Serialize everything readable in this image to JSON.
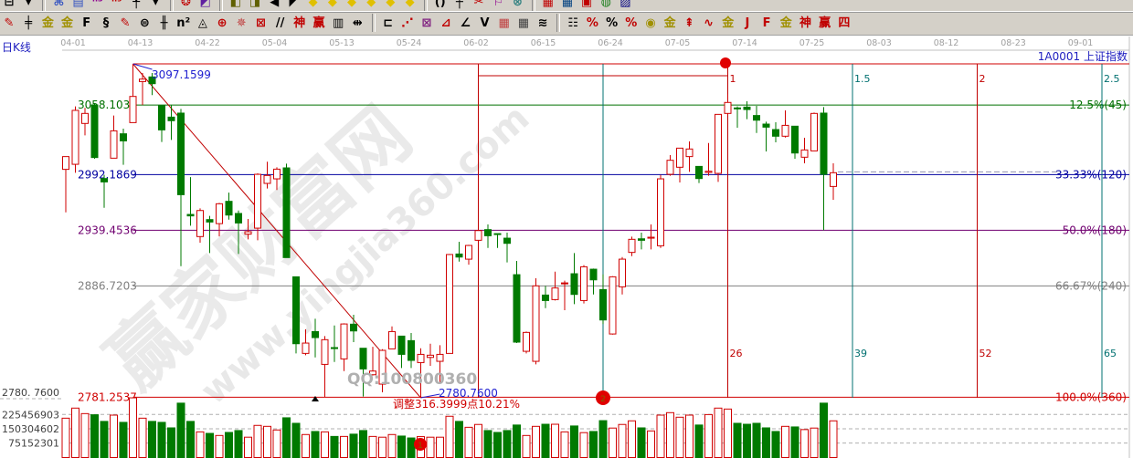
{
  "toolbar": {
    "row1": [
      {
        "name": "window-layout-icon",
        "glyph": "⊟",
        "color": "#000"
      },
      {
        "name": "dropdown-arrow-icon",
        "glyph": "▾",
        "color": "#000"
      },
      {
        "name": "sep"
      },
      {
        "name": "pattern-icon",
        "glyph": "⌘",
        "color": "#3050c0"
      },
      {
        "name": "list-icon",
        "glyph": "▤",
        "color": "#3050c0"
      },
      {
        "name": "indicator-3-icon",
        "glyph": "ⁿ³",
        "color": "#900090"
      },
      {
        "name": "indicator-9-icon",
        "glyph": "ⁿ⁹",
        "color": "#c00000"
      },
      {
        "name": "candle-type-icon",
        "glyph": "╀",
        "color": "#000"
      },
      {
        "name": "dropdown-arrow-icon",
        "glyph": "▾",
        "color": "#000"
      },
      {
        "name": "sep"
      },
      {
        "name": "cycle-icon",
        "glyph": "❂",
        "color": "#c00000"
      },
      {
        "name": "color-chart-icon",
        "glyph": "◩",
        "color": "#6020a0"
      },
      {
        "name": "sep"
      },
      {
        "name": "first-page-icon",
        "glyph": "◧",
        "color": "#606000"
      },
      {
        "name": "prev-page-icon",
        "glyph": "◨",
        "color": "#606000"
      },
      {
        "name": "back-icon",
        "glyph": "◀",
        "color": "#000"
      },
      {
        "name": "forward-icon",
        "glyph": "◤",
        "color": "#000"
      },
      {
        "name": "diamond-1-icon",
        "glyph": "◆",
        "color": "#e0c000"
      },
      {
        "name": "diamond-2-icon",
        "glyph": "◆",
        "color": "#e0c000"
      },
      {
        "name": "diamond-3-icon",
        "glyph": "◆",
        "color": "#e0c000"
      },
      {
        "name": "diamond-4-icon",
        "glyph": "◆",
        "color": "#e0c000"
      },
      {
        "name": "diamond-5-icon",
        "glyph": "◆",
        "color": "#e0c000"
      },
      {
        "name": "diamond-6-icon",
        "glyph": "◆",
        "color": "#e0c000"
      },
      {
        "name": "sep"
      },
      {
        "name": "parentheses-icon",
        "glyph": "()",
        "color": "#000"
      },
      {
        "name": "crosshair-icon",
        "glyph": "┼",
        "color": "#000"
      },
      {
        "name": "scissors-icon",
        "glyph": "✂",
        "color": "#c00000"
      },
      {
        "name": "flag-icon",
        "glyph": "⚐",
        "color": "#900090"
      },
      {
        "name": "link-icon",
        "glyph": "⊗",
        "color": "#308080"
      },
      {
        "name": "sep"
      },
      {
        "name": "calendar-icon",
        "glyph": "▦",
        "color": "#c00000"
      },
      {
        "name": "grid-icon",
        "glyph": "▦",
        "color": "#004080"
      },
      {
        "name": "save-icon",
        "glyph": "▣",
        "color": "#c00000"
      },
      {
        "name": "globe-icon",
        "glyph": "◍",
        "color": "#208020"
      },
      {
        "name": "print-icon",
        "glyph": "▨",
        "color": "#000080"
      }
    ],
    "row2": [
      {
        "name": "pencil-icon",
        "glyph": "✎",
        "color": "#c00000"
      },
      {
        "name": "hash-lines-icon",
        "glyph": "╪",
        "color": "#000"
      },
      {
        "name": "gold-lines-icon",
        "glyph": "金",
        "color": "#a09000"
      },
      {
        "name": "gold-lines-2-icon",
        "glyph": "金",
        "color": "#a09000"
      },
      {
        "name": "f-lines-icon",
        "glyph": "F",
        "color": "#000"
      },
      {
        "name": "spiral-icon",
        "glyph": "§",
        "color": "#000"
      },
      {
        "name": "pencil-lines-icon",
        "glyph": "✎",
        "color": "#c00000"
      },
      {
        "name": "circle-scale-icon",
        "glyph": "⊜",
        "color": "#000"
      },
      {
        "name": "grid-lines-icon",
        "glyph": "╫",
        "color": "#000"
      },
      {
        "name": "n-squared-icon",
        "glyph": "n²",
        "color": "#000"
      },
      {
        "name": "triangle-lines-icon",
        "glyph": "◬",
        "color": "#000"
      },
      {
        "name": "target-icon",
        "glyph": "⊕",
        "color": "#c00000"
      },
      {
        "name": "compass-icon",
        "glyph": "✵",
        "color": "#c04040"
      },
      {
        "name": "square-web-icon",
        "glyph": "⊠",
        "color": "#c00000"
      },
      {
        "name": "parallel-icon",
        "glyph": "//",
        "color": "#000"
      },
      {
        "name": "shen-icon",
        "glyph": "神",
        "color": "#c00000"
      },
      {
        "name": "ying-icon",
        "glyph": "赢",
        "color": "#c00000"
      },
      {
        "name": "ruler-123-icon",
        "glyph": "▥",
        "color": "#000"
      },
      {
        "name": "width-icon",
        "glyph": "⇹",
        "color": "#000"
      },
      {
        "name": "sep"
      },
      {
        "name": "box-icon",
        "glyph": "⊏",
        "color": "#000"
      },
      {
        "name": "fan-icon",
        "glyph": "⋰",
        "color": "#c00000"
      },
      {
        "name": "gann-box-icon",
        "glyph": "⊠",
        "color": "#802080"
      },
      {
        "name": "gann-fan-icon",
        "glyph": "⊿",
        "color": "#c00000"
      },
      {
        "name": "angle-icon",
        "glyph": "∠",
        "color": "#000"
      },
      {
        "name": "v-lines-icon",
        "glyph": "V",
        "color": "#000"
      },
      {
        "name": "gann-grid-icon",
        "glyph": "▦",
        "color": "#c04040"
      },
      {
        "name": "grid-2-icon",
        "glyph": "▦",
        "color": "#404040"
      },
      {
        "name": "diagonal-lines-icon",
        "glyph": "≋",
        "color": "#000"
      },
      {
        "name": "sep"
      },
      {
        "name": "table-icon",
        "glyph": "☷",
        "color": "#000"
      },
      {
        "name": "percent-slash-icon",
        "glyph": "%",
        "color": "#c00000"
      },
      {
        "name": "percent-icon",
        "glyph": "%",
        "color": "#000"
      },
      {
        "name": "percent-lines-icon",
        "glyph": "%",
        "color": "#c00000"
      },
      {
        "name": "gold-coin-icon",
        "glyph": "◉",
        "color": "#a09000"
      },
      {
        "name": "gold-bars-icon",
        "glyph": "金",
        "color": "#a09000"
      },
      {
        "name": "rocket-icon",
        "glyph": "⇞",
        "color": "#c00000"
      },
      {
        "name": "wave-icon",
        "glyph": "∿",
        "color": "#c00000"
      },
      {
        "name": "gold-box-icon",
        "glyph": "金",
        "color": "#a09000"
      },
      {
        "name": "j-angle-icon",
        "glyph": "J",
        "color": "#c00000"
      },
      {
        "name": "f-angle-icon",
        "glyph": "F",
        "color": "#c00000"
      },
      {
        "name": "gold-angle-icon",
        "glyph": "金",
        "color": "#a09000"
      },
      {
        "name": "shen-angle-icon",
        "glyph": "神",
        "color": "#c00000"
      },
      {
        "name": "ying-angle-icon",
        "glyph": "赢",
        "color": "#c00000"
      },
      {
        "name": "four-angle-icon",
        "glyph": "四",
        "color": "#c00000"
      }
    ]
  },
  "header": {
    "period_label": "日K线",
    "symbol_label": "1A0001  上证指数"
  },
  "x_axis": {
    "tick_every_bars": 7,
    "date_labels": [
      "04-01",
      "04-13",
      "04-22",
      "05-04",
      "05-13",
      "05-24",
      "06-02",
      "06-15",
      "06-24",
      "07-05",
      "07-14",
      "07-25",
      "08-03",
      "08-12",
      "08-23",
      "09-01"
    ]
  },
  "price_axis_label": "2780. 7600",
  "volume_axis": {
    "labels": [
      "225456903",
      "150304602",
      "75152301"
    ],
    "values": [
      225456903,
      150304602,
      75152301
    ]
  },
  "colors": {
    "up": "#d00000",
    "down": "#007a00",
    "level_12_5": "#007000",
    "level_33": "#0000a0",
    "level_50": "#700070",
    "level_66": "#808080",
    "level_100": "#d00000",
    "cycle_red": "#c00000",
    "cycle_teal": "#007070",
    "annotation_blue": "#2020d0"
  },
  "chart_data": {
    "type": "candlestick",
    "price_range": [
      2780.76,
      3097.16
    ],
    "fields": [
      "open",
      "high",
      "low",
      "close",
      "volume"
    ],
    "candles": [
      [
        2997.2,
        3009.3,
        2956.5,
        3009.3,
        206000000.0
      ],
      [
        3002.0,
        3056.8,
        2994.0,
        3053.1,
        259000000.0
      ],
      [
        3040.7,
        3055.4,
        3029.4,
        3050.2,
        230000000.0
      ],
      [
        3058.2,
        3059.7,
        3007.2,
        3008.4,
        224000000.0
      ],
      [
        2988.5,
        2992.0,
        2960.8,
        2985.3,
        189000000.0
      ],
      [
        3007.8,
        3048.2,
        3007.8,
        3033.7,
        222000000.0
      ],
      [
        3030.9,
        3035.8,
        3001.5,
        3024.2,
        184000000.0
      ],
      [
        3041.5,
        3097.16,
        3041.5,
        3066.3,
        313000000.0
      ],
      [
        3080.4,
        3088.5,
        3058.2,
        3082.7,
        206000000.0
      ],
      [
        3084.8,
        3088.5,
        3067.5,
        3078.4,
        189000000.0
      ],
      [
        3057.7,
        3058.2,
        3023.1,
        3034.6,
        184000000.0
      ],
      [
        3046.7,
        3058.2,
        3025.1,
        3043.3,
        155000000.0
      ],
      [
        3050.5,
        3054.5,
        2905.5,
        2973.2,
        285000000.0
      ],
      [
        2954.5,
        2989.9,
        2943.8,
        2953.1,
        189000000.0
      ],
      [
        2933.5,
        2960.3,
        2927.7,
        2958.2,
        134000000.0
      ],
      [
        2949.6,
        2953.1,
        2917.9,
        2947.3,
        126000000.0
      ],
      [
        2945.8,
        2965.4,
        2933.7,
        2964.6,
        115000000.0
      ],
      [
        2966.9,
        2975.2,
        2949.6,
        2953.9,
        131000000.0
      ],
      [
        2955.4,
        2958.2,
        2917.0,
        2946.4,
        141000000.0
      ],
      [
        2935.8,
        2950.2,
        2930.9,
        2938.1,
        106000000.0
      ],
      [
        2941.5,
        2993.4,
        2930.0,
        2992.5,
        168000000.0
      ],
      [
        2983.9,
        3004.4,
        2979.0,
        2991.4,
        163000000.0
      ],
      [
        2988.2,
        2999.2,
        2977.6,
        2997.4,
        144000000.0
      ],
      [
        2998.6,
        3002.6,
        2913.6,
        2913.6,
        208000000.0
      ],
      [
        2895.4,
        2895.4,
        2822.8,
        2832.0,
        179000000.0
      ],
      [
        2822.8,
        2845.6,
        2821.1,
        2832.6,
        120000000.0
      ],
      [
        2843.5,
        2855.6,
        2819.0,
        2837.8,
        136000000.0
      ],
      [
        2812.4,
        2839.2,
        2781.25,
        2835.8,
        134000000.0
      ],
      [
        2828.3,
        2849.3,
        2814.7,
        2827.4,
        110000000.0
      ],
      [
        2817.6,
        2851.3,
        2806.1,
        2850.7,
        110000000.0
      ],
      [
        2850.5,
        2859.4,
        2833.5,
        2844.1,
        122000000.0
      ],
      [
        2827.7,
        2827.7,
        2782.0,
        2808.1,
        141000000.0
      ],
      [
        2802.6,
        2829.1,
        2801.8,
        2806.1,
        110000000.0
      ],
      [
        2793.7,
        2826.8,
        2785.9,
        2825.7,
        106000000.0
      ],
      [
        2827.1,
        2848.4,
        2827.1,
        2843.5,
        120000000.0
      ],
      [
        2839.2,
        2839.2,
        2809.0,
        2821.9,
        112000000.0
      ],
      [
        2834.9,
        2842.1,
        2809.0,
        2816.2,
        102000000.0
      ],
      [
        2814.1,
        2827.7,
        2780.76,
        2821.9,
        109000000.0
      ],
      [
        2819.0,
        2832.0,
        2811.0,
        2821.1,
        106000000.0
      ],
      [
        2815.3,
        2830.6,
        2794.5,
        2821.9,
        106000000.0
      ],
      [
        2822.8,
        2917.0,
        2822.8,
        2916.5,
        216000000.0
      ],
      [
        2917.0,
        2928.6,
        2909.8,
        2914.1,
        189000000.0
      ],
      [
        2912.1,
        2925.7,
        2906.9,
        2925.1,
        158000000.0
      ],
      [
        2930.0,
        2940.1,
        2930.0,
        2939.2,
        173000000.0
      ],
      [
        2940.1,
        2945.0,
        2922.8,
        2934.3,
        141000000.0
      ],
      [
        2936.3,
        2936.3,
        2922.8,
        2935.8,
        131000000.0
      ],
      [
        2932.0,
        2937.2,
        2909.0,
        2927.1,
        141000000.0
      ],
      [
        2897.4,
        2910.4,
        2832.6,
        2833.5,
        170000000.0
      ],
      [
        2824.8,
        2843.5,
        2822.8,
        2842.7,
        115000000.0
      ],
      [
        2815.3,
        2894.0,
        2812.4,
        2886.8,
        163000000.0
      ],
      [
        2878.1,
        2886.8,
        2865.7,
        2872.9,
        174000000.0
      ],
      [
        2873.8,
        2900.3,
        2872.9,
        2884.8,
        174000000.0
      ],
      [
        2889.1,
        2891.7,
        2863.7,
        2889.6,
        134000000.0
      ],
      [
        2898.3,
        2917.9,
        2869.5,
        2878.7,
        165000000.0
      ],
      [
        2872.9,
        2906.4,
        2870.1,
        2904.9,
        130000000.0
      ],
      [
        2902.6,
        2903.2,
        2878.7,
        2892.5,
        136000000.0
      ],
      [
        2883.3,
        2897.7,
        2850.7,
        2854.5,
        193000000.0
      ],
      [
        2841.2,
        2896.0,
        2840.6,
        2895.4,
        154000000.0
      ],
      [
        2885.9,
        2914.1,
        2878.7,
        2912.1,
        173000000.0
      ],
      [
        2918.5,
        2933.5,
        2915.0,
        2930.9,
        192000000.0
      ],
      [
        2931.4,
        2937.2,
        2921.4,
        2930.0,
        155000000.0
      ],
      [
        2932.0,
        2945.0,
        2921.4,
        2932.9,
        139000000.0
      ],
      [
        2924.8,
        2992.0,
        2922.8,
        2988.2,
        222000000.0
      ],
      [
        2992.5,
        3010.7,
        2991.1,
        3005.8,
        235000000.0
      ],
      [
        2999.2,
        3017.3,
        2984.8,
        3017.3,
        211000000.0
      ],
      [
        3009.3,
        3023.7,
        2994.8,
        3016.5,
        222000000.0
      ],
      [
        3000.0,
        3000.0,
        2984.2,
        2988.5,
        170000000.0
      ],
      [
        2994.3,
        3022.2,
        2991.1,
        2995.4,
        225000000.0
      ],
      [
        2993.4,
        3049.3,
        2985.3,
        3049.3,
        259000000.0
      ],
      [
        3050.2,
        3068.3,
        3048.2,
        3060.6,
        254000000.0
      ],
      [
        3055.4,
        3056.8,
        3036.6,
        3054.5,
        179000000.0
      ],
      [
        3056.2,
        3061.7,
        3044.7,
        3053.9,
        174000000.0
      ],
      [
        3048.2,
        3057.4,
        3031.7,
        3043.8,
        179000000.0
      ],
      [
        3040.1,
        3042.4,
        3014.2,
        3037.2,
        155000000.0
      ],
      [
        3034.9,
        3041.8,
        3022.8,
        3028.6,
        136000000.0
      ],
      [
        3028.6,
        3053.1,
        3027.4,
        3038.9,
        163000000.0
      ],
      [
        3038.1,
        3038.1,
        3007.2,
        3012.7,
        160000000.0
      ],
      [
        3008.7,
        3027.1,
        3002.9,
        3015.6,
        146000000.0
      ],
      [
        3014.7,
        3051.0,
        3014.7,
        3050.2,
        154000000.0
      ],
      [
        3050.5,
        3056.2,
        2939.5,
        2992.5,
        285000000.0
      ],
      [
        2981.0,
        3002.9,
        2968.3,
        2994.0,
        192000000.0
      ]
    ],
    "levels": [
      {
        "price": 3097.1599,
        "left_label": "",
        "right_label": "",
        "color": "#d00000"
      },
      {
        "price": 3058.1036,
        "left_label": "3058.1036",
        "right_label": "12.5%(45)",
        "color": "#007000"
      },
      {
        "price": 2992.1869,
        "left_label": "2992.1869",
        "right_label": "33.33%(120)",
        "color": "#0000a0"
      },
      {
        "price": 2939.4536,
        "left_label": "2939.4536",
        "right_label": "50.0%(180)",
        "color": "#700070"
      },
      {
        "price": 2886.7203,
        "left_label": "2886.7203",
        "right_label": "66.67%(240)",
        "color": "#808080"
      },
      {
        "price": 2781.2537,
        "left_label": "2781.2537",
        "right_label": "100.0%(360)",
        "color": "#d00000"
      }
    ],
    "level_start_bar": 7,
    "cycle_lines": [
      {
        "bar": 43,
        "color": "#c00000",
        "top_label": "",
        "bottom_label": ""
      },
      {
        "bar": 56,
        "color": "#007070",
        "top_label": "",
        "bottom_label": ""
      },
      {
        "bar": 69,
        "color": "#c00000",
        "top_label": "1",
        "bottom_label": "26"
      },
      {
        "bar": 82,
        "color": "#007070",
        "top_label": "1.5",
        "bottom_label": "39"
      },
      {
        "bar": 95,
        "color": "#c00000",
        "top_label": "2",
        "bottom_label": "52"
      },
      {
        "bar": 108,
        "color": "#007070",
        "top_label": "2.5",
        "bottom_label": "65"
      }
    ],
    "current_price_line": 2992.1869,
    "annotations": {
      "high_label": "3097.1599",
      "low_label": "2780.7600",
      "adjustment_label": "调整316.3999点10.21%",
      "marker_1": "1",
      "marker_2": "2"
    }
  },
  "watermark": {
    "brand": "赢家财富网",
    "url": "www.yingjia360.com",
    "qq": "QQ:100800360"
  }
}
